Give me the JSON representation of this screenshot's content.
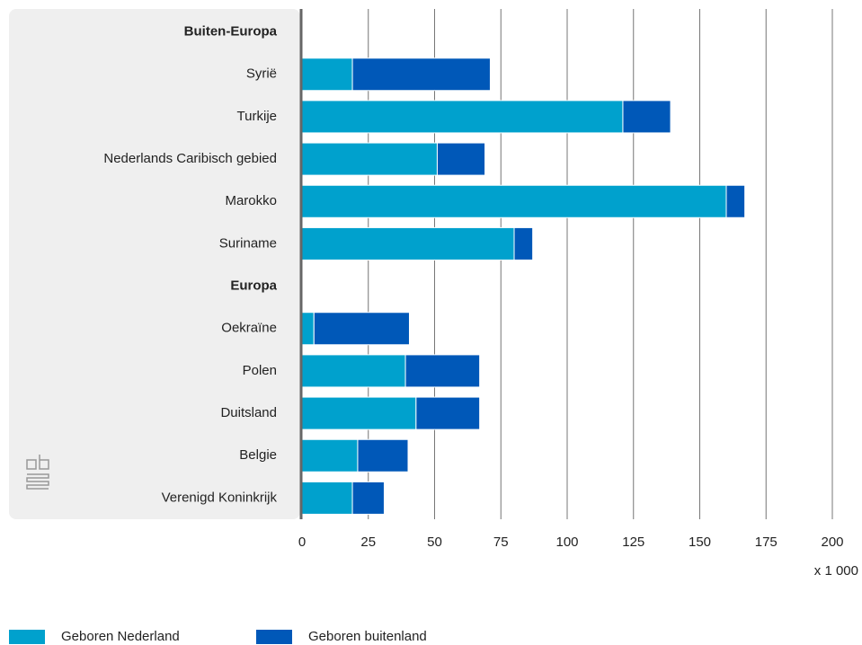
{
  "chart_data": {
    "type": "bar",
    "orientation": "horizontal",
    "stacked": true,
    "categories": [
      "Buiten-Europa",
      "Syrië",
      "Turkije",
      "Nederlands Caribisch gebied",
      "Marokko",
      "Suriname",
      "Europa",
      "Oekraïne",
      "Polen",
      "Duitsland",
      "Belgie",
      "Verenigd Koninkrijk"
    ],
    "series": [
      {
        "name": "Geboren Nederland",
        "color": "#00a1cd",
        "values": [
          null,
          19,
          121,
          51,
          160,
          80,
          null,
          4.5,
          39,
          43,
          21,
          19
        ]
      },
      {
        "name": "Geboren buitenland",
        "color": "#0058b8",
        "values": [
          null,
          52,
          18,
          18,
          7,
          7,
          null,
          36,
          28,
          24,
          19,
          12
        ]
      }
    ],
    "xlim": [
      0,
      200
    ],
    "xticks": [
      0,
      25,
      50,
      75,
      100,
      125,
      150,
      175,
      200
    ],
    "xlabel": "x 1 000",
    "grid": true,
    "legend": "bottom-left"
  }
}
